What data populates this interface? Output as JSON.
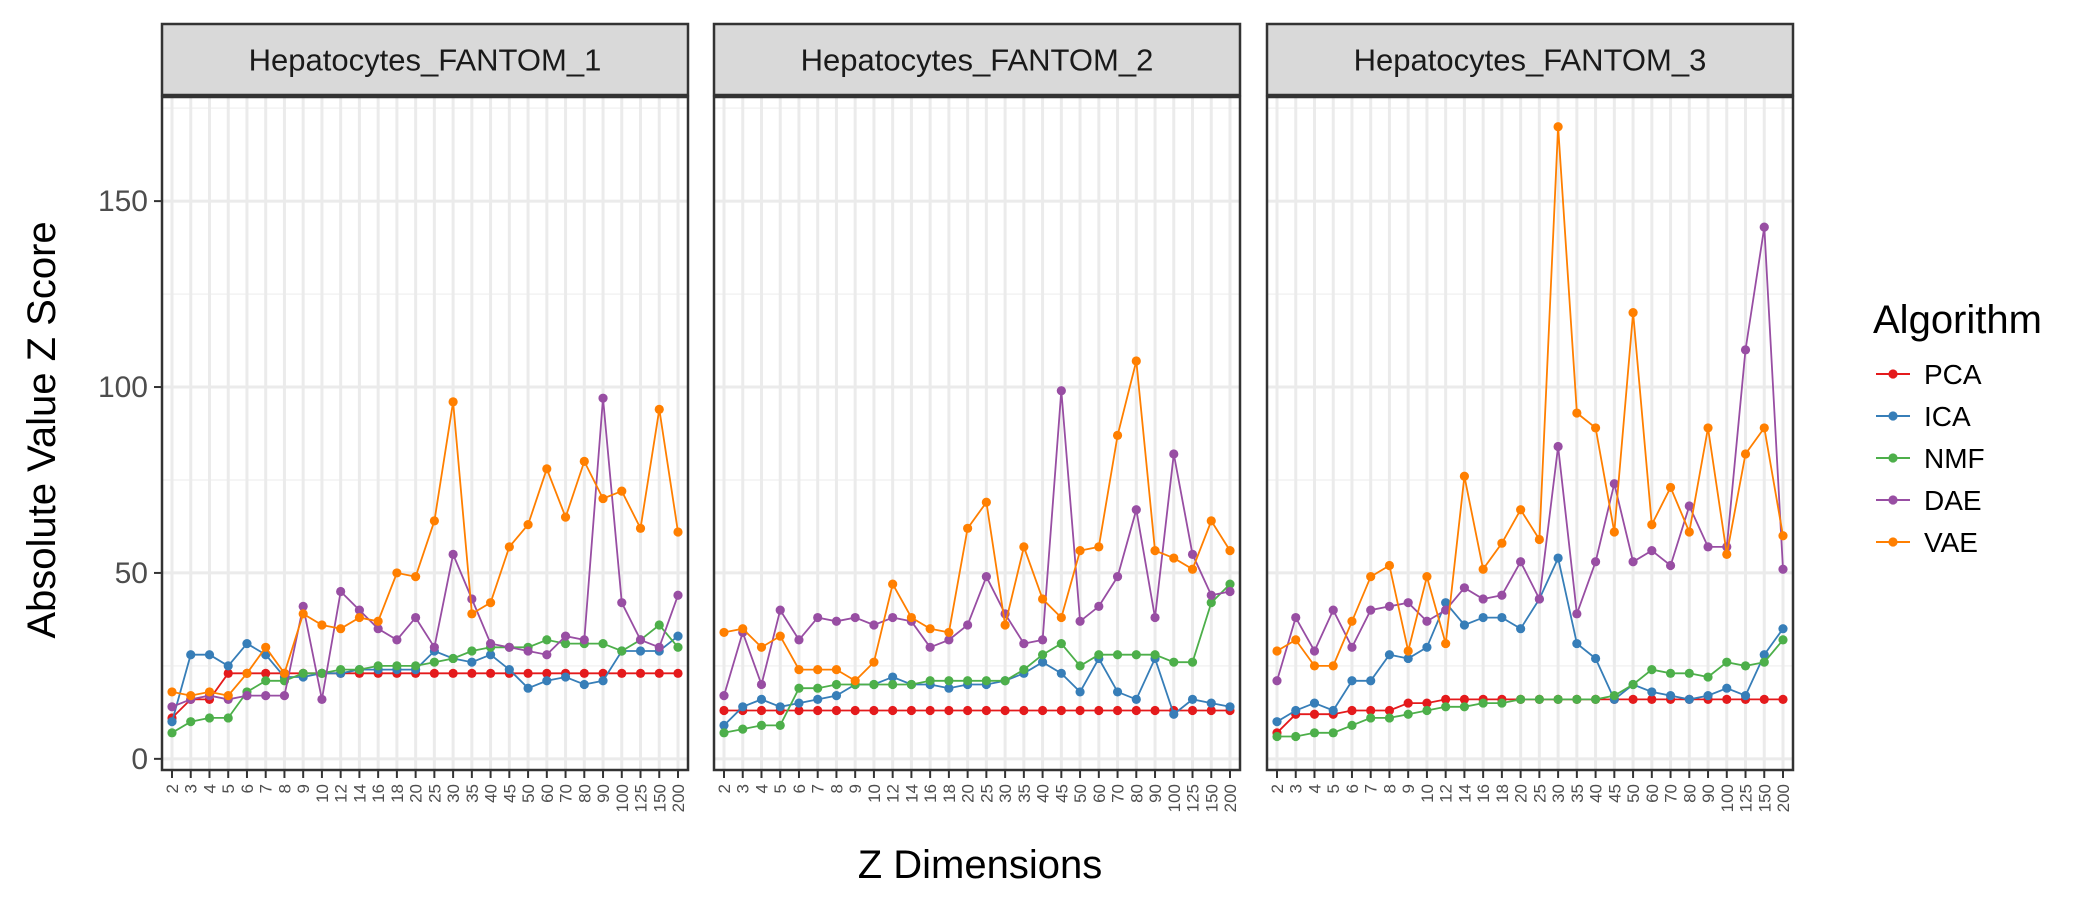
{
  "chart_data": {
    "type": "line",
    "xlabel": "Z Dimensions",
    "ylabel": "Absolute Value Z Score",
    "ylim": [
      -3,
      178
    ],
    "yticks": [
      0,
      50,
      100,
      150
    ],
    "categories": [
      "2",
      "3",
      "4",
      "5",
      "6",
      "7",
      "8",
      "9",
      "10",
      "12",
      "14",
      "16",
      "18",
      "20",
      "25",
      "30",
      "35",
      "40",
      "45",
      "50",
      "60",
      "70",
      "80",
      "90",
      "100",
      "125",
      "150",
      "200"
    ],
    "grid": true,
    "legend": {
      "title": "Algorithm",
      "position": "right",
      "entries": [
        "PCA",
        "ICA",
        "NMF",
        "DAE",
        "VAE"
      ]
    },
    "colors": {
      "PCA": "#e41a1c",
      "ICA": "#377eb8",
      "NMF": "#4daf4a",
      "DAE": "#984ea3",
      "VAE": "#ff7f00"
    },
    "panels": [
      {
        "title": "Hepatocytes_FANTOM_1",
        "series": [
          {
            "name": "PCA",
            "values": [
              11,
              16,
              16,
              23,
              23,
              23,
              23,
              23,
              23,
              23,
              23,
              23,
              23,
              23,
              23,
              23,
              23,
              23,
              23,
              23,
              23,
              23,
              23,
              23,
              23,
              23,
              23,
              23
            ]
          },
          {
            "name": "ICA",
            "values": [
              10,
              28,
              28,
              25,
              31,
              28,
              22,
              22,
              23,
              23,
              24,
              24,
              24,
              24,
              29,
              27,
              26,
              28,
              24,
              19,
              21,
              22,
              20,
              21,
              29,
              29,
              29,
              33
            ]
          },
          {
            "name": "NMF",
            "values": [
              7,
              10,
              11,
              11,
              18,
              21,
              21,
              23,
              23,
              24,
              24,
              25,
              25,
              25,
              26,
              27,
              29,
              30,
              30,
              30,
              32,
              31,
              31,
              31,
              29,
              32,
              36,
              30
            ]
          },
          {
            "name": "DAE",
            "values": [
              14,
              16,
              17,
              16,
              17,
              17,
              17,
              41,
              16,
              45,
              40,
              35,
              32,
              38,
              30,
              55,
              43,
              31,
              30,
              29,
              28,
              33,
              32,
              97,
              42,
              32,
              30,
              44
            ]
          },
          {
            "name": "VAE",
            "values": [
              18,
              17,
              18,
              17,
              23,
              30,
              23,
              39,
              36,
              35,
              38,
              37,
              50,
              49,
              64,
              96,
              39,
              42,
              57,
              63,
              78,
              65,
              80,
              70,
              72,
              62,
              94,
              61
            ]
          }
        ]
      },
      {
        "title": "Hepatocytes_FANTOM_2",
        "series": [
          {
            "name": "PCA",
            "values": [
              13,
              13,
              13,
              13,
              13,
              13,
              13,
              13,
              13,
              13,
              13,
              13,
              13,
              13,
              13,
              13,
              13,
              13,
              13,
              13,
              13,
              13,
              13,
              13,
              13,
              13,
              13,
              13
            ]
          },
          {
            "name": "ICA",
            "values": [
              9,
              14,
              16,
              14,
              15,
              16,
              17,
              20,
              20,
              22,
              20,
              20,
              19,
              20,
              20,
              21,
              23,
              26,
              23,
              18,
              27,
              18,
              16,
              27,
              12,
              16,
              15,
              14
            ]
          },
          {
            "name": "NMF",
            "values": [
              7,
              8,
              9,
              9,
              19,
              19,
              20,
              20,
              20,
              20,
              20,
              21,
              21,
              21,
              21,
              21,
              24,
              28,
              31,
              25,
              28,
              28,
              28,
              28,
              26,
              26,
              42,
              47
            ]
          },
          {
            "name": "DAE",
            "values": [
              17,
              34,
              20,
              40,
              32,
              38,
              37,
              38,
              36,
              38,
              37,
              30,
              32,
              36,
              49,
              39,
              31,
              32,
              99,
              37,
              41,
              49,
              67,
              38,
              82,
              55,
              44,
              45
            ]
          },
          {
            "name": "VAE",
            "values": [
              34,
              35,
              30,
              33,
              24,
              24,
              24,
              21,
              26,
              47,
              38,
              35,
              34,
              62,
              69,
              36,
              57,
              43,
              38,
              56,
              57,
              87,
              107,
              56,
              54,
              51,
              64,
              56
            ]
          }
        ]
      },
      {
        "title": "Hepatocytes_FANTOM_3",
        "series": [
          {
            "name": "PCA",
            "values": [
              7,
              12,
              12,
              12,
              13,
              13,
              13,
              15,
              15,
              16,
              16,
              16,
              16,
              16,
              16,
              16,
              16,
              16,
              16,
              16,
              16,
              16,
              16,
              16,
              16,
              16,
              16,
              16
            ]
          },
          {
            "name": "ICA",
            "values": [
              10,
              13,
              15,
              13,
              21,
              21,
              28,
              27,
              30,
              42,
              36,
              38,
              38,
              35,
              43,
              54,
              31,
              27,
              16,
              20,
              18,
              17,
              16,
              17,
              19,
              17,
              28,
              35
            ]
          },
          {
            "name": "NMF",
            "values": [
              6,
              6,
              7,
              7,
              9,
              11,
              11,
              12,
              13,
              14,
              14,
              15,
              15,
              16,
              16,
              16,
              16,
              16,
              17,
              20,
              24,
              23,
              23,
              22,
              26,
              25,
              26,
              32
            ]
          },
          {
            "name": "DAE",
            "values": [
              21,
              38,
              29,
              40,
              30,
              40,
              41,
              42,
              37,
              40,
              46,
              43,
              44,
              53,
              43,
              84,
              39,
              53,
              74,
              53,
              56,
              52,
              68,
              57,
              57,
              110,
              143,
              51
            ]
          },
          {
            "name": "VAE",
            "values": [
              29,
              32,
              25,
              25,
              37,
              49,
              52,
              29,
              49,
              31,
              76,
              51,
              58,
              67,
              59,
              170,
              93,
              89,
              61,
              120,
              63,
              73,
              61,
              89,
              55,
              82,
              89,
              60
            ]
          }
        ]
      }
    ]
  }
}
